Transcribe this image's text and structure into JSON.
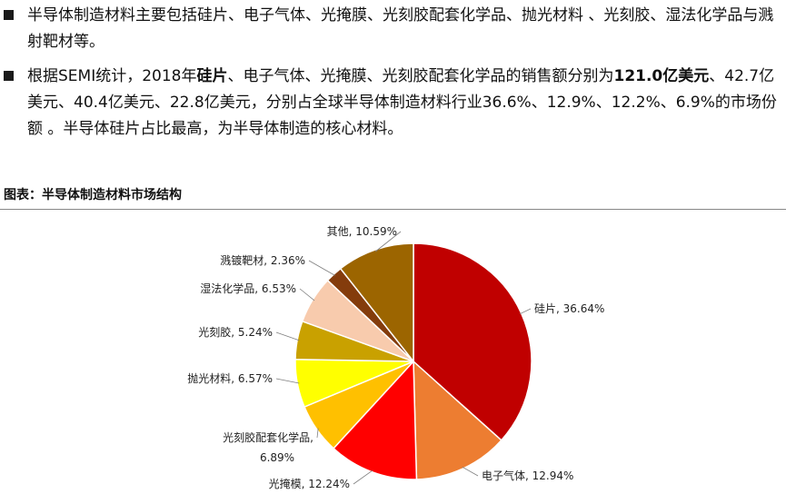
{
  "bullets": {
    "b1_text": "半导体制造材料主要包括硅片、电子气体、光掩膜、光刻胶配套化学品、抛光材料 、光刻胶、湿法化学品与溅射靶材等。",
    "b2_pre": "根据SEMI统计，2018年",
    "b2_bold1": "硅片",
    "b2_mid": "、电子气体、光掩膜、光刻胶配套化学品的销售额分别为",
    "b2_bold2": "121.0亿美元",
    "b2_post": "、42.7亿美元、40.4亿美元、22.8亿美元，分别占全球半导体制造材料行业36.6%、12.9%、12.2%、6.9%的市场份额 。半导体硅片占比最高，为半导体制造的核心材料。"
  },
  "figure": {
    "title": "图表：半导体制造材料市场结构"
  },
  "chart_data": {
    "type": "pie",
    "slices": [
      {
        "name": "硅片",
        "value": 36.64,
        "label": "硅片, 36.64%",
        "color": "#c00000"
      },
      {
        "name": "电子气体",
        "value": 12.94,
        "label": "电子气体, 12.94%",
        "color": "#ed7d31"
      },
      {
        "name": "光掩模",
        "value": 12.24,
        "label": "光掩模, 12.24%",
        "color": "#ff0000"
      },
      {
        "name": "光刻胶配套化学品",
        "value": 6.89,
        "label": "光刻胶配套化学品,",
        "label2": "6.89%",
        "color": "#ffc000"
      },
      {
        "name": "抛光材料",
        "value": 6.57,
        "label": "抛光材料, 6.57%",
        "color": "#ffff00"
      },
      {
        "name": "光刻胶",
        "value": 5.24,
        "label": "光刻胶, 5.24%",
        "color": "#c9a100"
      },
      {
        "name": "湿法化学品",
        "value": 6.53,
        "label": "湿法化学品, 6.53%",
        "color": "#f8cbad"
      },
      {
        "name": "溅镀靶材",
        "value": 2.36,
        "label": "溅镀靶材, 2.36%",
        "color": "#843c0c"
      },
      {
        "name": "其他",
        "value": 10.59,
        "label": "其他, 10.59%",
        "color": "#9c6500"
      }
    ]
  }
}
